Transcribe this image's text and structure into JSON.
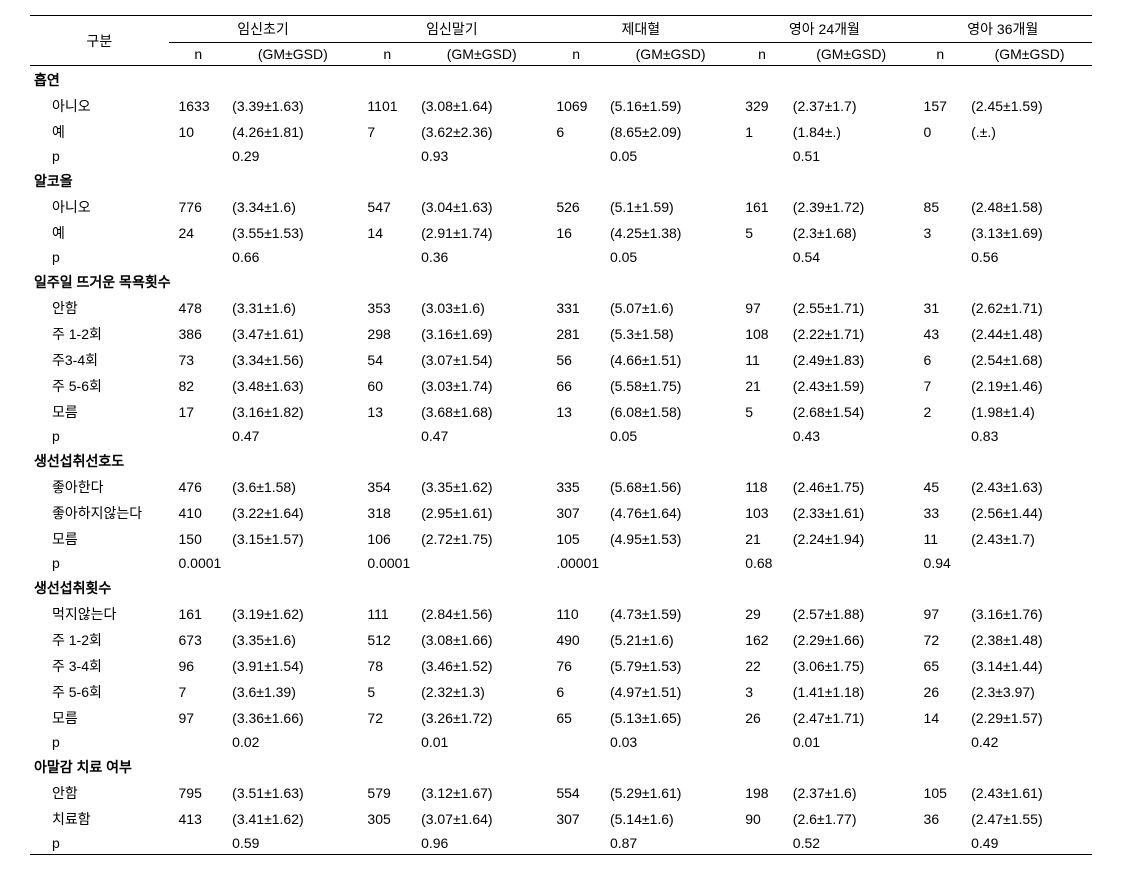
{
  "header": {
    "category": "구분",
    "columns": [
      {
        "label": "임신초기",
        "n": "n",
        "gm": "(GM±GSD)"
      },
      {
        "label": "임신말기",
        "n": "n",
        "gm": "(GM±GSD)"
      },
      {
        "label": "제대혈",
        "n": "n",
        "gm": "(GM±GSD)"
      },
      {
        "label": "영아 24개월",
        "n": "n",
        "gm": "(GM±GSD)"
      },
      {
        "label": "영아 36개월",
        "n": "n",
        "gm": "(GM±GSD)"
      }
    ]
  },
  "sections": [
    {
      "title": "흡연",
      "rows": [
        {
          "label": "아니오",
          "vals": [
            [
              "1633",
              "(3.39±1.63)"
            ],
            [
              "1101",
              "(3.08±1.64)"
            ],
            [
              "1069",
              "(5.16±1.59)"
            ],
            [
              "329",
              "(2.37±1.7)"
            ],
            [
              "157",
              "(2.45±1.59)"
            ]
          ]
        },
        {
          "label": "예",
          "vals": [
            [
              "10",
              "(4.26±1.81)"
            ],
            [
              "7",
              "(3.62±2.36)"
            ],
            [
              "6",
              "(8.65±2.09)"
            ],
            [
              "1",
              "(1.84±.)"
            ],
            [
              "0",
              "(.±.)"
            ]
          ]
        }
      ],
      "p": {
        "label": "p",
        "vals": [
          "0.29",
          "0.93",
          "0.05",
          "0.51",
          ""
        ]
      }
    },
    {
      "title": "알코올",
      "rows": [
        {
          "label": "아니오",
          "vals": [
            [
              "776",
              "(3.34±1.6)"
            ],
            [
              "547",
              "(3.04±1.63)"
            ],
            [
              "526",
              "(5.1±1.59)"
            ],
            [
              "161",
              "(2.39±1.72)"
            ],
            [
              "85",
              "(2.48±1.58)"
            ]
          ]
        },
        {
          "label": "예",
          "vals": [
            [
              "24",
              "(3.55±1.53)"
            ],
            [
              "14",
              "(2.91±1.74)"
            ],
            [
              "16",
              "(4.25±1.38)"
            ],
            [
              "5",
              "(2.3±1.68)"
            ],
            [
              "3",
              "(3.13±1.69)"
            ]
          ]
        }
      ],
      "p": {
        "label": "p",
        "vals": [
          "0.66",
          "0.36",
          "0.05",
          "0.54",
          "0.56"
        ]
      }
    },
    {
      "title": "일주일 뜨거운 목욕횟수",
      "rows": [
        {
          "label": "안함",
          "vals": [
            [
              "478",
              "(3.31±1.6)"
            ],
            [
              "353",
              "(3.03±1.6)"
            ],
            [
              "331",
              "(5.07±1.6)"
            ],
            [
              "97",
              "(2.55±1.71)"
            ],
            [
              "31",
              "(2.62±1.71)"
            ]
          ]
        },
        {
          "label": "주 1-2회",
          "vals": [
            [
              "386",
              "(3.47±1.61)"
            ],
            [
              "298",
              "(3.16±1.69)"
            ],
            [
              "281",
              "(5.3±1.58)"
            ],
            [
              "108",
              "(2.22±1.71)"
            ],
            [
              "43",
              "(2.44±1.48)"
            ]
          ]
        },
        {
          "label": "주3-4회",
          "vals": [
            [
              "73",
              "(3.34±1.56)"
            ],
            [
              "54",
              "(3.07±1.54)"
            ],
            [
              "56",
              "(4.66±1.51)"
            ],
            [
              "11",
              "(2.49±1.83)"
            ],
            [
              "6",
              "(2.54±1.68)"
            ]
          ]
        },
        {
          "label": "주 5-6회",
          "vals": [
            [
              "82",
              "(3.48±1.63)"
            ],
            [
              "60",
              "(3.03±1.74)"
            ],
            [
              "66",
              "(5.58±1.75)"
            ],
            [
              "21",
              "(2.43±1.59)"
            ],
            [
              "7",
              "(2.19±1.46)"
            ]
          ]
        },
        {
          "label": "모름",
          "vals": [
            [
              "17",
              "(3.16±1.82)"
            ],
            [
              "13",
              "(3.68±1.68)"
            ],
            [
              "13",
              "(6.08±1.58)"
            ],
            [
              "5",
              "(2.68±1.54)"
            ],
            [
              "2",
              "(1.98±1.4)"
            ]
          ]
        }
      ],
      "p": {
        "label": "p",
        "vals": [
          "0.47",
          "0.47",
          "0.05",
          "0.43",
          "0.83"
        ]
      }
    },
    {
      "title": "생선섭취선호도",
      "rows": [
        {
          "label": "좋아한다",
          "vals": [
            [
              "476",
              "(3.6±1.58)"
            ],
            [
              "354",
              "(3.35±1.62)"
            ],
            [
              "335",
              "(5.68±1.56)"
            ],
            [
              "118",
              "(2.46±1.75)"
            ],
            [
              "45",
              "(2.43±1.63)"
            ]
          ]
        },
        {
          "label": "좋아하지않는다",
          "vals": [
            [
              "410",
              "(3.22±1.64)"
            ],
            [
              "318",
              "(2.95±1.61)"
            ],
            [
              "307",
              "(4.76±1.64)"
            ],
            [
              "103",
              "(2.33±1.61)"
            ],
            [
              "33",
              "(2.56±1.44)"
            ]
          ]
        },
        {
          "label": "모름",
          "vals": [
            [
              "150",
              "(3.15±1.57)"
            ],
            [
              "106",
              "(2.72±1.75)"
            ],
            [
              "105",
              "(4.95±1.53)"
            ],
            [
              "21",
              "(2.24±1.94)"
            ],
            [
              "11",
              "(2.43±1.7)"
            ]
          ]
        }
      ],
      "p_in_n": {
        "label": "p",
        "vals": [
          "0.0001",
          "0.0001",
          ".00001",
          "0.68",
          "0.94"
        ]
      }
    },
    {
      "title": "생선섭취횟수",
      "rows": [
        {
          "label": "먹지않는다",
          "vals": [
            [
              "161",
              "(3.19±1.62)"
            ],
            [
              "111",
              "(2.84±1.56)"
            ],
            [
              "110",
              "(4.73±1.59)"
            ],
            [
              "29",
              "(2.57±1.88)"
            ],
            [
              "97",
              "(3.16±1.76)"
            ]
          ]
        },
        {
          "label": "주 1-2회",
          "vals": [
            [
              "673",
              "(3.35±1.6)"
            ],
            [
              "512",
              "(3.08±1.66)"
            ],
            [
              "490",
              "(5.21±1.6)"
            ],
            [
              "162",
              "(2.29±1.66)"
            ],
            [
              "72",
              "(2.38±1.48)"
            ]
          ]
        },
        {
          "label": "주 3-4회",
          "vals": [
            [
              "96",
              "(3.91±1.54)"
            ],
            [
              "78",
              "(3.46±1.52)"
            ],
            [
              "76",
              "(5.79±1.53)"
            ],
            [
              "22",
              "(3.06±1.75)"
            ],
            [
              "65",
              "(3.14±1.44)"
            ]
          ]
        },
        {
          "label": "주 5-6회",
          "vals": [
            [
              "7",
              "(3.6±1.39)"
            ],
            [
              "5",
              "(2.32±1.3)"
            ],
            [
              "6",
              "(4.97±1.51)"
            ],
            [
              "3",
              "(1.41±1.18)"
            ],
            [
              "26",
              "(2.3±3.97)"
            ]
          ]
        },
        {
          "label": "모름",
          "vals": [
            [
              "97",
              "(3.36±1.66)"
            ],
            [
              "72",
              "(3.26±1.72)"
            ],
            [
              "65",
              "(5.13±1.65)"
            ],
            [
              "26",
              "(2.47±1.71)"
            ],
            [
              "14",
              "(2.29±1.57)"
            ]
          ]
        }
      ],
      "p": {
        "label": "p",
        "vals": [
          "0.02",
          "0.01",
          "0.03",
          "0.01",
          "0.42"
        ]
      }
    },
    {
      "title": "아말감 치료 여부",
      "rows": [
        {
          "label": "안함",
          "vals": [
            [
              "795",
              "(3.51±1.63)"
            ],
            [
              "579",
              "(3.12±1.67)"
            ],
            [
              "554",
              "(5.29±1.61)"
            ],
            [
              "198",
              "(2.37±1.6)"
            ],
            [
              "105",
              "(2.43±1.61)"
            ]
          ]
        },
        {
          "label": "치료함",
          "vals": [
            [
              "413",
              "(3.41±1.62)"
            ],
            [
              "305",
              "(3.07±1.64)"
            ],
            [
              "307",
              "(5.14±1.6)"
            ],
            [
              "90",
              "(2.6±1.77)"
            ],
            [
              "36",
              "(2.47±1.55)"
            ]
          ]
        }
      ],
      "p": {
        "label": "p",
        "vals": [
          "0.59",
          "0.96",
          "0.87",
          "0.52",
          "0.49"
        ]
      },
      "last": true
    }
  ]
}
